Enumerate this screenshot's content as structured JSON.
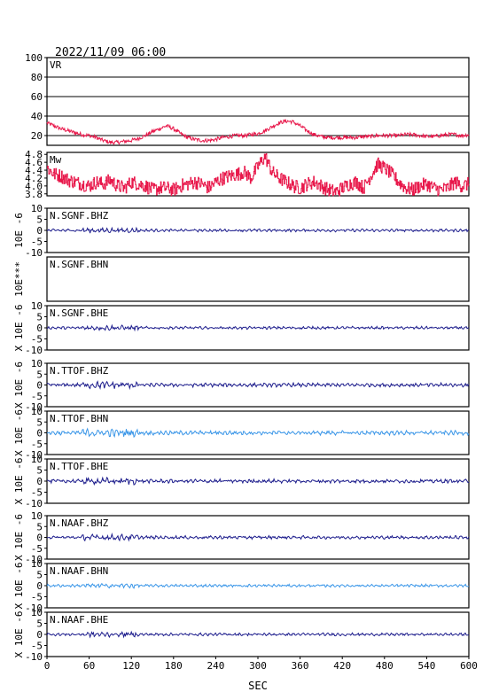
{
  "header": {
    "datetime": "2022/11/09 06:00"
  },
  "colors": {
    "vr": "#e8174a",
    "mw": "#e8174a",
    "dark": "#1c1c8c",
    "light": "#3a96e8",
    "frame": "#000000"
  },
  "chart_data": {
    "type": "line",
    "xlabel": "SEC",
    "xlim": [
      0,
      600
    ],
    "xticks": [
      "0",
      "60",
      "120",
      "180",
      "240",
      "300",
      "360",
      "420",
      "480",
      "540",
      "600"
    ],
    "panels": [
      {
        "id": "vr",
        "name": "VR",
        "color": "vr",
        "ylabel": "",
        "grid": true,
        "ylim": [
          10,
          100
        ],
        "yticks": [
          "20",
          "40",
          "60",
          "80",
          "100"
        ],
        "ytick_values": [
          20,
          40,
          60,
          80,
          100
        ],
        "series": {
          "x": [
            0,
            10,
            20,
            30,
            40,
            50,
            60,
            70,
            80,
            90,
            100,
            110,
            120,
            130,
            140,
            150,
            160,
            170,
            180,
            190,
            200,
            210,
            220,
            230,
            240,
            250,
            260,
            270,
            280,
            290,
            300,
            310,
            320,
            330,
            340,
            350,
            360,
            370,
            380,
            390,
            400,
            410,
            420,
            430,
            440,
            450,
            460,
            470,
            480,
            490,
            500,
            510,
            520,
            530,
            540,
            550,
            560,
            570,
            580,
            590,
            600
          ],
          "y": [
            33,
            30,
            27,
            25,
            23,
            21,
            20,
            18,
            15,
            13,
            13,
            14,
            15,
            17,
            20,
            24,
            27,
            30,
            27,
            22,
            18,
            16,
            15,
            15,
            16,
            18,
            19,
            20,
            20,
            21,
            22,
            25,
            29,
            33,
            35,
            34,
            30,
            25,
            21,
            19,
            18,
            18,
            18,
            18,
            18,
            19,
            19,
            20,
            20,
            20,
            20,
            21,
            21,
            20,
            19,
            19,
            20,
            21,
            21,
            20,
            21
          ]
        }
      },
      {
        "id": "mw",
        "name": "Mw",
        "color": "mw",
        "ylabel": "",
        "grid": false,
        "ylim": [
          3.75,
          4.85
        ],
        "yticks": [
          "3.8",
          "4.0",
          "4.2",
          "4.4",
          "4.6",
          "4.8"
        ],
        "ytick_values": [
          3.8,
          4.0,
          4.2,
          4.4,
          4.6,
          4.8
        ],
        "series": {
          "x": [
            0,
            10,
            20,
            30,
            40,
            50,
            60,
            70,
            80,
            90,
            100,
            110,
            120,
            130,
            140,
            150,
            160,
            170,
            180,
            190,
            200,
            210,
            220,
            230,
            240,
            250,
            260,
            270,
            280,
            290,
            300,
            310,
            320,
            330,
            340,
            350,
            360,
            370,
            380,
            390,
            400,
            410,
            420,
            430,
            440,
            450,
            460,
            470,
            480,
            490,
            500,
            510,
            520,
            530,
            540,
            550,
            560,
            570,
            580,
            590,
            600
          ],
          "y": [
            4.45,
            4.3,
            4.25,
            4.15,
            4.1,
            4.05,
            4.0,
            4.1,
            4.05,
            4.15,
            4.0,
            3.95,
            4.1,
            4.05,
            4.0,
            3.9,
            3.95,
            3.95,
            3.9,
            4.0,
            4.05,
            4.1,
            4.05,
            3.95,
            4.1,
            4.2,
            4.25,
            4.3,
            4.35,
            4.2,
            4.5,
            4.75,
            4.35,
            4.2,
            4.1,
            4.0,
            3.95,
            4.05,
            4.1,
            4.0,
            3.9,
            3.85,
            3.95,
            4.05,
            4.1,
            3.95,
            4.25,
            4.55,
            4.45,
            4.3,
            4.1,
            3.95,
            3.9,
            4.0,
            4.05,
            3.95,
            3.9,
            3.95,
            4.1,
            4.0,
            4.05
          ]
        }
      },
      {
        "id": "sgnf-bhz",
        "name": "N.SGNF.BHZ",
        "color": "dark",
        "ylabel": "10E -6",
        "grid": false,
        "ylim": [
          -10,
          10
        ],
        "yticks": [
          "-10",
          "-5",
          "0",
          "5",
          "10"
        ],
        "ytick_values": [
          -10,
          -5,
          0,
          5,
          10
        ],
        "series": {
          "amplitude": 0.5
        }
      },
      {
        "id": "sgnf-bhn",
        "name": "N.SGNF.BHN",
        "color": "dark",
        "ylabel": "10E***",
        "grid": false,
        "ylim": [
          -10,
          10
        ],
        "yticks": [],
        "ytick_values": [],
        "series": {
          "amplitude": 0
        }
      },
      {
        "id": "sgnf-bhe",
        "name": "N.SGNF.BHE",
        "color": "dark",
        "ylabel": "X 10E -6",
        "grid": false,
        "ylim": [
          -10,
          10
        ],
        "yticks": [
          "-10",
          "-5",
          "0",
          "5",
          "10"
        ],
        "ytick_values": [
          -10,
          -5,
          0,
          5,
          10
        ],
        "series": {
          "amplitude": 0.5
        }
      },
      {
        "id": "ttof-bhz",
        "name": "N.TTOF.BHZ",
        "color": "dark",
        "ylabel": "X 10E -6",
        "grid": false,
        "ylim": [
          -10,
          10
        ],
        "yticks": [
          "-10",
          "-5",
          "0",
          "5",
          "10"
        ],
        "ytick_values": [
          -10,
          -5,
          0,
          5,
          10
        ],
        "series": {
          "amplitude": 0.7
        }
      },
      {
        "id": "ttof-bhn",
        "name": "N.TTOF.BHN",
        "color": "light",
        "ylabel": "X 10E -6",
        "grid": false,
        "ylim": [
          -10,
          10
        ],
        "yticks": [
          "-10",
          "-5",
          "0",
          "5",
          "10"
        ],
        "ytick_values": [
          -10,
          -5,
          0,
          5,
          10
        ],
        "series": {
          "amplitude": 0.8
        }
      },
      {
        "id": "ttof-bhe",
        "name": "N.TTOF.BHE",
        "color": "dark",
        "ylabel": "X 10E -6",
        "grid": false,
        "ylim": [
          -10,
          10
        ],
        "yticks": [
          "-10",
          "-5",
          "0",
          "5",
          "10"
        ],
        "ytick_values": [
          -10,
          -5,
          0,
          5,
          10
        ],
        "series": {
          "amplitude": 0.7
        }
      },
      {
        "id": "naaf-bhz",
        "name": "N.NAAF.BHZ",
        "color": "dark",
        "ylabel": "X 10E -6",
        "grid": false,
        "ylim": [
          -10,
          10
        ],
        "yticks": [
          "-10",
          "-5",
          "0",
          "5",
          "10"
        ],
        "ytick_values": [
          -10,
          -5,
          0,
          5,
          10
        ],
        "series": {
          "amplitude": 0.6
        }
      },
      {
        "id": "naaf-bhn",
        "name": "N.NAAF.BHN",
        "color": "light",
        "ylabel": "X 10E -6",
        "grid": false,
        "ylim": [
          -10,
          10
        ],
        "yticks": [
          "-10",
          "-5",
          "0",
          "5",
          "10"
        ],
        "ytick_values": [
          -10,
          -5,
          0,
          5,
          10
        ],
        "series": {
          "amplitude": 0.5
        }
      },
      {
        "id": "naaf-bhe",
        "name": "N.NAAF.BHE",
        "color": "dark",
        "ylabel": "X 10E -6",
        "grid": false,
        "ylim": [
          -10,
          10
        ],
        "yticks": [
          "-10",
          "-5",
          "0",
          "5",
          "10"
        ],
        "ytick_values": [
          -10,
          -5,
          0,
          5,
          10
        ],
        "series": {
          "amplitude": 0.5
        }
      }
    ]
  }
}
